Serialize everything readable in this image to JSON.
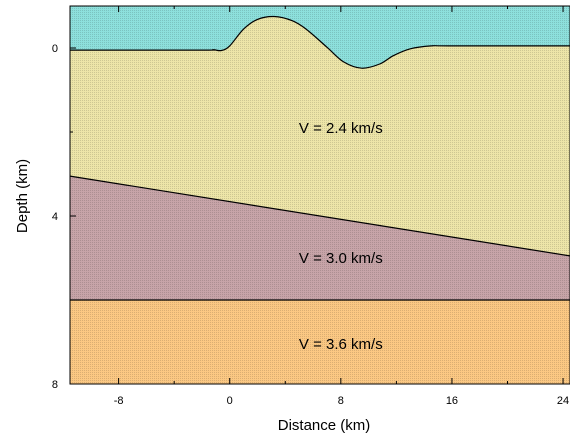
{
  "chart_data": {
    "type": "area",
    "xlabel": "Distance (km)",
    "ylabel": "Depth (km)",
    "xlim": [
      -11.5,
      24.5
    ],
    "ylim": [
      8,
      -1
    ],
    "x_ticks": [
      {
        "value": -8,
        "label": "-8"
      },
      {
        "value": 0,
        "label": "0"
      },
      {
        "value": 8,
        "label": "8"
      },
      {
        "value": 16,
        "label": "16"
      },
      {
        "value": 24,
        "label": "24"
      }
    ],
    "y_ticks": [
      {
        "value": 0,
        "label": "0"
      },
      {
        "value": 4,
        "label": "4"
      },
      {
        "value": 8,
        "label": "8"
      }
    ],
    "x_minor_ticks": [
      -4,
      4,
      12,
      20
    ],
    "y_minor_ticks": [
      2,
      6
    ],
    "layers": [
      {
        "label": "",
        "color": "#8de0dc",
        "top_depth": [
          [
            -11.5,
            -1
          ],
          [
            24.5,
            -1
          ]
        ],
        "label_at": null
      },
      {
        "label": "V = 2.4 km/s",
        "color": "#ede5a8",
        "top_depth": [
          [
            -11.5,
            0.05
          ],
          [
            -2,
            0.05
          ],
          [
            -1.2,
            0.04
          ],
          [
            -0.6,
            0.06
          ],
          [
            0,
            -0.05
          ],
          [
            1,
            -0.45
          ],
          [
            2,
            -0.68
          ],
          [
            3.2,
            -0.75
          ],
          [
            4.5,
            -0.65
          ],
          [
            5.5,
            -0.45
          ],
          [
            7,
            -0.02
          ],
          [
            8.2,
            0.33
          ],
          [
            9.5,
            0.48
          ],
          [
            10.8,
            0.38
          ],
          [
            11.8,
            0.18
          ],
          [
            13,
            0.02
          ],
          [
            14.5,
            -0.05
          ],
          [
            16,
            -0.05
          ],
          [
            24.5,
            -0.05
          ]
        ],
        "label_at": [
          8,
          1.9
        ]
      },
      {
        "label": "V = 3.0 km/s",
        "color": "#c7a4a8",
        "top_depth": [
          [
            -11.5,
            3.05
          ],
          [
            24.5,
            4.95
          ]
        ],
        "label_at": [
          8,
          5
        ]
      },
      {
        "label": "V = 3.6 km/s",
        "color": "#fbc883",
        "top_depth": [
          [
            -11.5,
            6
          ],
          [
            24.5,
            6
          ]
        ],
        "label_at": [
          8,
          7.05
        ]
      }
    ]
  }
}
